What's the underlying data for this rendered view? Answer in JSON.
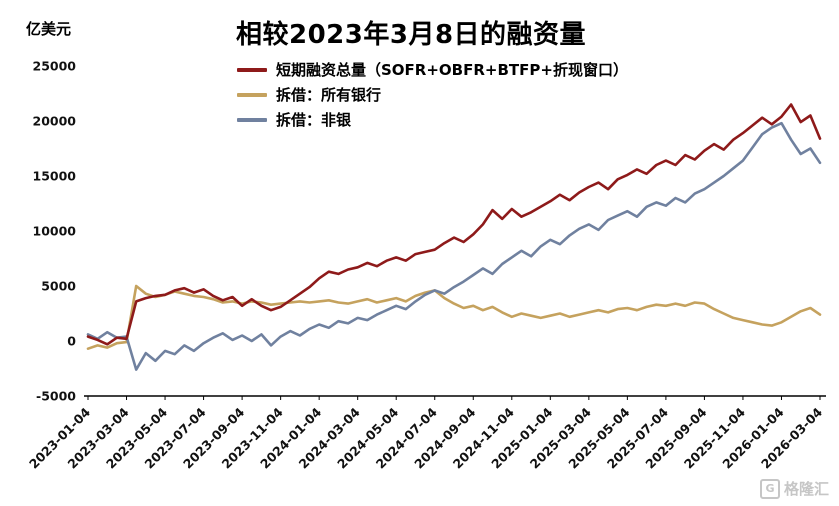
{
  "title": "相较2023年3月8日的融资量",
  "y_axis_unit": "亿美元",
  "watermark": {
    "logo_letter": "G",
    "text": "格隆汇"
  },
  "chart_data": {
    "type": "line",
    "title": "相较2023年3月8日的融资量",
    "ylabel": "亿美元",
    "ylim": [
      -5000,
      25000
    ],
    "y_ticks": [
      25000,
      20000,
      15000,
      10000,
      5000,
      0,
      -5000
    ],
    "grid": false,
    "legend_position": "top-left",
    "x_tick_labels": [
      "2023-01-04",
      "2023-03-04",
      "2023-05-04",
      "2023-07-04",
      "2023-09-04",
      "2023-11-04",
      "2024-01-04",
      "2024-03-04",
      "2024-05-04",
      "2024-07-04",
      "2024-09-04",
      "2024-11-04",
      "2025-01-04",
      "2025-03-04",
      "2025-05-04",
      "2025-07-04",
      "2025-09-04",
      "2025-11-04",
      "2026-01-04",
      "2026-03-04"
    ],
    "series": [
      {
        "name": "短期融资总量（SOFR+OBFR+BTFP+折现窗口）",
        "color": "#8e1a1a",
        "values": [
          400,
          100,
          -300,
          300,
          200,
          3600,
          3900,
          4100,
          4200,
          4600,
          4800,
          4400,
          4700,
          4100,
          3700,
          4000,
          3200,
          3800,
          3200,
          2800,
          3100,
          3700,
          4300,
          4900,
          5700,
          6300,
          6100,
          6500,
          6700,
          7100,
          6800,
          7300,
          7600,
          7300,
          7900,
          8100,
          8300,
          8900,
          9400,
          9000,
          9700,
          10600,
          11900,
          11100,
          12000,
          11300,
          11700,
          12200,
          12700,
          13300,
          12800,
          13500,
          14000,
          14400,
          13800,
          14700,
          15100,
          15600,
          15200,
          16000,
          16400,
          16000,
          16900,
          16500,
          17300,
          17900,
          17400,
          18300,
          18900,
          19600,
          20300,
          19700,
          20400,
          21500,
          19900,
          20500,
          18400
        ]
      },
      {
        "name": "拆借：所有银行",
        "color": "#c5a25e",
        "values": [
          -700,
          -400,
          -600,
          -200,
          -100,
          5000,
          4300,
          4000,
          4200,
          4500,
          4300,
          4100,
          4000,
          3800,
          3500,
          3600,
          3400,
          3600,
          3500,
          3300,
          3400,
          3500,
          3600,
          3500,
          3600,
          3700,
          3500,
          3400,
          3600,
          3800,
          3500,
          3700,
          3900,
          3600,
          4100,
          4400,
          4600,
          3900,
          3400,
          3000,
          3200,
          2800,
          3100,
          2600,
          2200,
          2500,
          2300,
          2100,
          2300,
          2500,
          2200,
          2400,
          2600,
          2800,
          2600,
          2900,
          3000,
          2800,
          3100,
          3300,
          3200,
          3400,
          3200,
          3500,
          3400,
          2900,
          2500,
          2100,
          1900,
          1700,
          1500,
          1400,
          1700,
          2200,
          2700,
          3000,
          2400
        ]
      },
      {
        "name": "拆借：非银",
        "color": "#70819f",
        "values": [
          600,
          200,
          800,
          300,
          400,
          -2600,
          -1100,
          -1800,
          -900,
          -1200,
          -400,
          -900,
          -200,
          300,
          700,
          100,
          500,
          0,
          600,
          -400,
          400,
          900,
          500,
          1100,
          1500,
          1200,
          1800,
          1600,
          2100,
          1900,
          2400,
          2800,
          3200,
          2900,
          3600,
          4200,
          4600,
          4300,
          4900,
          5400,
          6000,
          6600,
          6100,
          7000,
          7600,
          8200,
          7700,
          8600,
          9200,
          8800,
          9600,
          10200,
          10600,
          10100,
          11000,
          11400,
          11800,
          11300,
          12200,
          12600,
          12300,
          13000,
          12600,
          13400,
          13800,
          14400,
          15000,
          15700,
          16400,
          17600,
          18800,
          19400,
          19800,
          18300,
          17000,
          17500,
          16200
        ]
      }
    ]
  }
}
